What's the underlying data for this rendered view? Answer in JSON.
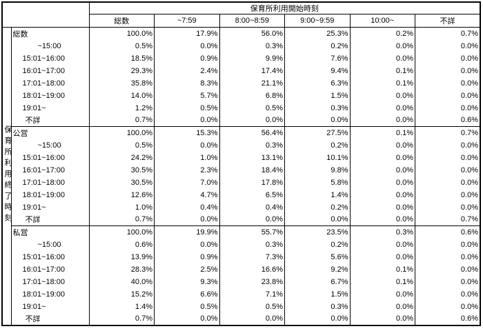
{
  "colors": {
    "border": "#000000",
    "text": "#000000",
    "background": "#ffffff"
  },
  "chart_data": {
    "type": "table",
    "title_col_axis": "保育所利用開始時刻",
    "title_row_axis": "保育所利用終了時刻",
    "unit": "%",
    "columns": [
      "総数",
      "~7:59",
      "8:00~8:59",
      "9:00~9:59",
      "10:00~",
      "不詳"
    ],
    "groups": [
      {
        "name": "総数",
        "rows": [
          {
            "label": "総数",
            "indent": 0,
            "values": [
              100.0,
              17.9,
              56.0,
              25.3,
              0.2,
              0.7
            ]
          },
          {
            "label": "~15:00",
            "indent": 2,
            "values": [
              0.5,
              0.0,
              0.3,
              0.2,
              0.0,
              0.0
            ]
          },
          {
            "label": "15:01~16:00",
            "indent": 1,
            "values": [
              18.5,
              0.9,
              9.9,
              7.6,
              0.0,
              0.0
            ]
          },
          {
            "label": "16:01~17:00",
            "indent": 1,
            "values": [
              29.3,
              2.4,
              17.4,
              9.4,
              0.1,
              0.0
            ]
          },
          {
            "label": "17:01~18:00",
            "indent": 1,
            "values": [
              35.8,
              8.3,
              21.1,
              6.3,
              0.1,
              0.0
            ]
          },
          {
            "label": "18:01~19:00",
            "indent": 1,
            "values": [
              14.0,
              5.7,
              6.8,
              1.5,
              0.0,
              0.0
            ]
          },
          {
            "label": "19:01~",
            "indent": 1,
            "values": [
              1.2,
              0.5,
              0.5,
              0.3,
              0.0,
              0.0
            ]
          },
          {
            "label": "不詳",
            "indent": 3,
            "values": [
              0.7,
              0.0,
              0.0,
              0.0,
              0.0,
              0.6
            ]
          }
        ]
      },
      {
        "name": "公営",
        "rows": [
          {
            "label": "公営",
            "indent": 0,
            "values": [
              100.0,
              15.3,
              56.4,
              27.5,
              0.1,
              0.7
            ]
          },
          {
            "label": "~15:00",
            "indent": 2,
            "values": [
              0.5,
              0.0,
              0.3,
              0.2,
              0.0,
              0.0
            ]
          },
          {
            "label": "15:01~16:00",
            "indent": 1,
            "values": [
              24.2,
              1.0,
              13.1,
              10.1,
              0.0,
              0.0
            ]
          },
          {
            "label": "16:01~17:00",
            "indent": 1,
            "values": [
              30.5,
              2.3,
              18.4,
              9.8,
              0.0,
              0.0
            ]
          },
          {
            "label": "17:01~18:00",
            "indent": 1,
            "values": [
              30.5,
              7.0,
              17.8,
              5.8,
              0.0,
              0.0
            ]
          },
          {
            "label": "18:01~19:00",
            "indent": 1,
            "values": [
              12.6,
              4.7,
              6.5,
              1.4,
              0.0,
              0.0
            ]
          },
          {
            "label": "19:01~",
            "indent": 1,
            "values": [
              1.0,
              0.4,
              0.4,
              0.2,
              0.0,
              0.0
            ]
          },
          {
            "label": "不詳",
            "indent": 3,
            "values": [
              0.7,
              0.0,
              0.0,
              0.0,
              0.0,
              0.7
            ]
          }
        ]
      },
      {
        "name": "私営",
        "rows": [
          {
            "label": "私営",
            "indent": 0,
            "values": [
              100.0,
              19.9,
              55.7,
              23.5,
              0.3,
              0.6
            ]
          },
          {
            "label": "~15:00",
            "indent": 2,
            "values": [
              0.6,
              0.0,
              0.3,
              0.2,
              0.0,
              0.0
            ]
          },
          {
            "label": "15:01~16:00",
            "indent": 1,
            "values": [
              13.9,
              0.9,
              7.3,
              5.6,
              0.0,
              0.0
            ]
          },
          {
            "label": "16:01~17:00",
            "indent": 1,
            "values": [
              28.3,
              2.5,
              16.6,
              9.2,
              0.1,
              0.0
            ]
          },
          {
            "label": "17:01~18:00",
            "indent": 1,
            "values": [
              40.0,
              9.3,
              23.8,
              6.7,
              0.1,
              0.0
            ]
          },
          {
            "label": "18:01~19:00",
            "indent": 1,
            "values": [
              15.2,
              6.6,
              7.1,
              1.5,
              0.0,
              0.0
            ]
          },
          {
            "label": "19:01~",
            "indent": 1,
            "values": [
              1.4,
              0.5,
              0.5,
              0.3,
              0.0,
              0.0
            ]
          },
          {
            "label": "不詳",
            "indent": 3,
            "values": [
              0.7,
              0.0,
              0.0,
              0.0,
              0.0,
              0.6
            ]
          }
        ]
      }
    ]
  }
}
